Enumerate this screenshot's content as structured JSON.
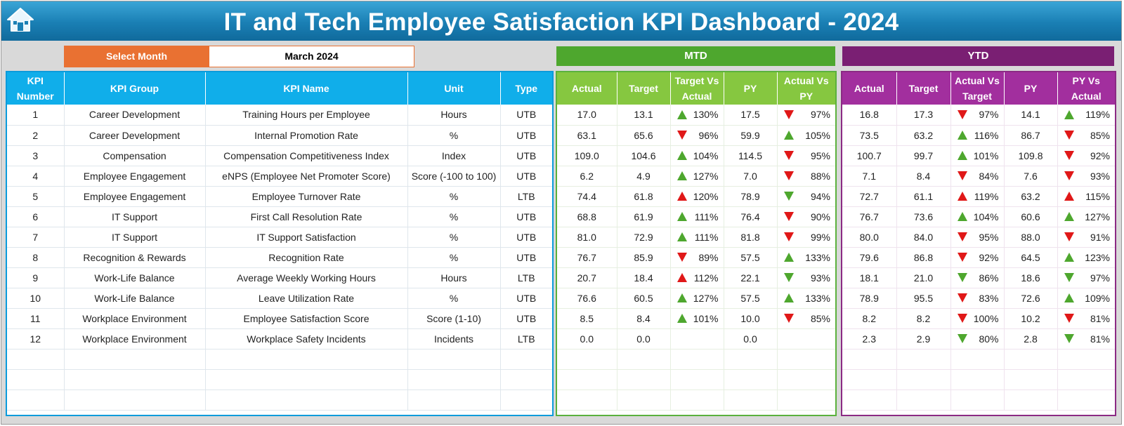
{
  "title": "IT and Tech Employee Satisfaction KPI Dashboard - 2024",
  "home_icon": "home-icon",
  "select_month": {
    "label": "Select Month",
    "value": "March 2024"
  },
  "mtd": {
    "label": "MTD",
    "columns": [
      "Actual",
      "Target",
      "Target Vs Actual",
      "PY",
      "Actual Vs PY"
    ]
  },
  "ytd": {
    "label": "YTD",
    "columns": [
      "Actual",
      "Target",
      "Actual Vs Target",
      "PY",
      "PY Vs Actual"
    ]
  },
  "left_columns": [
    "KPI Number",
    "KPI Group",
    "KPI Name",
    "Unit",
    "Type"
  ],
  "colors": {
    "green": "#4ea72e",
    "red": "#e01818",
    "title_blue": "#1a7fb4",
    "orange": "#e97132",
    "purple": "#7a1f73"
  },
  "rows": [
    {
      "num": "1",
      "group": "Career Development",
      "name": "Training Hours per Employee",
      "unit": "Hours",
      "type": "UTB",
      "mtd": {
        "actual": "17.0",
        "target": "13.1",
        "tva": "130%",
        "tva_ind": "up-green",
        "py": "17.5",
        "avp": "97%",
        "avp_ind": "down-red"
      },
      "ytd": {
        "actual": "16.8",
        "target": "17.3",
        "avt": "97%",
        "avt_ind": "down-red",
        "py": "14.1",
        "pva": "119%",
        "pva_ind": "up-green"
      }
    },
    {
      "num": "2",
      "group": "Career Development",
      "name": "Internal Promotion Rate",
      "unit": "%",
      "type": "UTB",
      "mtd": {
        "actual": "63.1",
        "target": "65.6",
        "tva": "96%",
        "tva_ind": "down-red",
        "py": "59.9",
        "avp": "105%",
        "avp_ind": "up-green"
      },
      "ytd": {
        "actual": "73.5",
        "target": "63.2",
        "avt": "116%",
        "avt_ind": "up-green",
        "py": "86.7",
        "pva": "85%",
        "pva_ind": "down-red"
      }
    },
    {
      "num": "3",
      "group": "Compensation",
      "name": "Compensation Competitiveness Index",
      "unit": "Index",
      "type": "UTB",
      "mtd": {
        "actual": "109.0",
        "target": "104.6",
        "tva": "104%",
        "tva_ind": "up-green",
        "py": "114.5",
        "avp": "95%",
        "avp_ind": "down-red"
      },
      "ytd": {
        "actual": "100.7",
        "target": "99.7",
        "avt": "101%",
        "avt_ind": "up-green",
        "py": "109.8",
        "pva": "92%",
        "pva_ind": "down-red"
      }
    },
    {
      "num": "4",
      "group": "Employee Engagement",
      "name": "eNPS (Employee Net Promoter Score)",
      "unit": "Score (-100 to 100)",
      "type": "UTB",
      "mtd": {
        "actual": "6.2",
        "target": "4.9",
        "tva": "127%",
        "tva_ind": "up-green",
        "py": "7.0",
        "avp": "88%",
        "avp_ind": "down-red"
      },
      "ytd": {
        "actual": "7.1",
        "target": "8.4",
        "avt": "84%",
        "avt_ind": "down-red",
        "py": "7.6",
        "pva": "93%",
        "pva_ind": "down-red"
      }
    },
    {
      "num": "5",
      "group": "Employee Engagement",
      "name": "Employee Turnover Rate",
      "unit": "%",
      "type": "LTB",
      "mtd": {
        "actual": "74.4",
        "target": "61.8",
        "tva": "120%",
        "tva_ind": "up-red",
        "py": "78.9",
        "avp": "94%",
        "avp_ind": "down-green"
      },
      "ytd": {
        "actual": "72.7",
        "target": "61.1",
        "avt": "119%",
        "avt_ind": "up-red",
        "py": "63.2",
        "pva": "115%",
        "pva_ind": "up-red"
      }
    },
    {
      "num": "6",
      "group": "IT Support",
      "name": "First Call Resolution Rate",
      "unit": "%",
      "type": "UTB",
      "mtd": {
        "actual": "68.8",
        "target": "61.9",
        "tva": "111%",
        "tva_ind": "up-green",
        "py": "76.4",
        "avp": "90%",
        "avp_ind": "down-red"
      },
      "ytd": {
        "actual": "76.7",
        "target": "73.6",
        "avt": "104%",
        "avt_ind": "up-green",
        "py": "60.6",
        "pva": "127%",
        "pva_ind": "up-green"
      }
    },
    {
      "num": "7",
      "group": "IT Support",
      "name": "IT Support Satisfaction",
      "unit": "%",
      "type": "UTB",
      "mtd": {
        "actual": "81.0",
        "target": "72.9",
        "tva": "111%",
        "tva_ind": "up-green",
        "py": "81.8",
        "avp": "99%",
        "avp_ind": "down-red"
      },
      "ytd": {
        "actual": "80.0",
        "target": "84.0",
        "avt": "95%",
        "avt_ind": "down-red",
        "py": "88.0",
        "pva": "91%",
        "pva_ind": "down-red"
      }
    },
    {
      "num": "8",
      "group": "Recognition & Rewards",
      "name": "Recognition Rate",
      "unit": "%",
      "type": "UTB",
      "mtd": {
        "actual": "76.7",
        "target": "85.9",
        "tva": "89%",
        "tva_ind": "down-red",
        "py": "57.5",
        "avp": "133%",
        "avp_ind": "up-green"
      },
      "ytd": {
        "actual": "79.6",
        "target": "86.8",
        "avt": "92%",
        "avt_ind": "down-red",
        "py": "64.5",
        "pva": "123%",
        "pva_ind": "up-green"
      }
    },
    {
      "num": "9",
      "group": "Work-Life Balance",
      "name": "Average Weekly Working Hours",
      "unit": "Hours",
      "type": "LTB",
      "mtd": {
        "actual": "20.7",
        "target": "18.4",
        "tva": "112%",
        "tva_ind": "up-red",
        "py": "22.1",
        "avp": "93%",
        "avp_ind": "down-green"
      },
      "ytd": {
        "actual": "18.1",
        "target": "21.0",
        "avt": "86%",
        "avt_ind": "down-green",
        "py": "18.6",
        "pva": "97%",
        "pva_ind": "down-green"
      }
    },
    {
      "num": "10",
      "group": "Work-Life Balance",
      "name": "Leave Utilization Rate",
      "unit": "%",
      "type": "UTB",
      "mtd": {
        "actual": "76.6",
        "target": "60.5",
        "tva": "127%",
        "tva_ind": "up-green",
        "py": "57.5",
        "avp": "133%",
        "avp_ind": "up-green"
      },
      "ytd": {
        "actual": "78.9",
        "target": "95.5",
        "avt": "83%",
        "avt_ind": "down-red",
        "py": "72.6",
        "pva": "109%",
        "pva_ind": "up-green"
      }
    },
    {
      "num": "11",
      "group": "Workplace Environment",
      "name": "Employee Satisfaction Score",
      "unit": "Score (1-10)",
      "type": "UTB",
      "mtd": {
        "actual": "8.5",
        "target": "8.4",
        "tva": "101%",
        "tva_ind": "up-green",
        "py": "10.0",
        "avp": "85%",
        "avp_ind": "down-red"
      },
      "ytd": {
        "actual": "8.2",
        "target": "8.2",
        "avt": "100%",
        "avt_ind": "down-red",
        "py": "10.2",
        "pva": "81%",
        "pva_ind": "down-red"
      }
    },
    {
      "num": "12",
      "group": "Workplace Environment",
      "name": "Workplace Safety Incidents",
      "unit": "Incidents",
      "type": "LTB",
      "mtd": {
        "actual": "0.0",
        "target": "0.0",
        "tva": "",
        "tva_ind": "",
        "py": "0.0",
        "avp": "",
        "avp_ind": ""
      },
      "ytd": {
        "actual": "2.3",
        "target": "2.9",
        "avt": "80%",
        "avt_ind": "down-green",
        "py": "2.8",
        "pva": "81%",
        "pva_ind": "down-green"
      }
    }
  ],
  "empty_rows": 3
}
